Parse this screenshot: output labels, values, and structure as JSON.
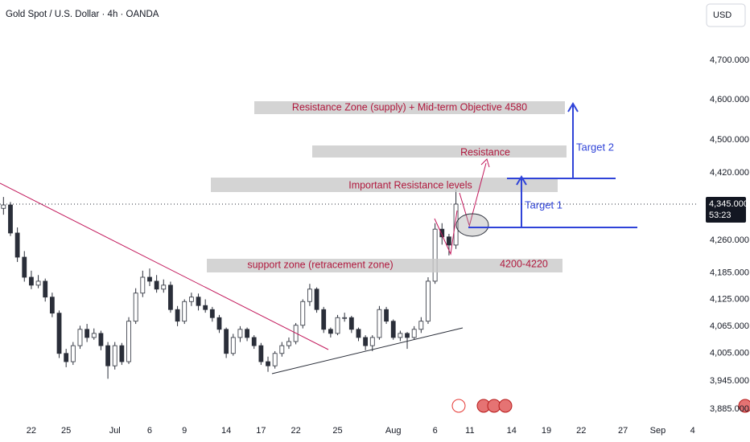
{
  "chart_data": {
    "type": "candlestick",
    "title": "Gold Spot / U.S. Dollar · 4h · OANDA",
    "currency": "USD",
    "log_scale": true,
    "grid": false,
    "up_color": "#ffffff",
    "down_color": "#2a2e39",
    "wick_color": "#2a2e39",
    "ylim": [
      3816,
      4857
    ],
    "yticks": [
      {
        "value": 4700,
        "label": "4,700.000"
      },
      {
        "value": 4600,
        "label": "4,600.000"
      },
      {
        "value": 4500,
        "label": "4,500.000"
      },
      {
        "value": 4420,
        "label": "4,420.000"
      },
      {
        "value": 4260,
        "label": "4,260.000"
      },
      {
        "value": 4185,
        "label": "4,185.000"
      },
      {
        "value": 4125,
        "label": "4,125.000"
      },
      {
        "value": 4065,
        "label": "4,065.000"
      },
      {
        "value": 4005,
        "label": "4,005.000"
      },
      {
        "value": 3945,
        "label": "3,945.000"
      },
      {
        "value": 3885,
        "label": "3,885.000"
      }
    ],
    "last_price": {
      "value": 4345,
      "label": "4,345.000"
    },
    "countdown": "53:23",
    "categories": [
      null,
      null,
      null,
      null,
      "22",
      null,
      null,
      null,
      null,
      "25",
      null,
      null,
      null,
      null,
      null,
      null,
      "Jul",
      null,
      null,
      null,
      null,
      "6",
      null,
      null,
      null,
      null,
      "9",
      null,
      null,
      null,
      null,
      null,
      "14",
      null,
      null,
      null,
      null,
      "17",
      null,
      null,
      null,
      null,
      "22",
      null,
      null,
      null,
      null,
      null,
      "25",
      null,
      null,
      null,
      null,
      null,
      null,
      null,
      "Aug",
      null,
      null,
      null,
      null,
      null,
      "6",
      null,
      null,
      null,
      null,
      "11",
      null,
      null,
      null,
      null,
      null,
      "14",
      null,
      null,
      null,
      null,
      "19",
      null,
      null,
      null,
      null,
      "22",
      null,
      null,
      null,
      null,
      null,
      "27",
      null,
      null,
      null,
      null,
      "Sep",
      null,
      null,
      null,
      null,
      "4"
    ],
    "open": [
      4335,
      4343,
      4277,
      4221,
      4175,
      4157,
      4166,
      4130,
      4094,
      4005,
      3987,
      4022,
      4058,
      4040,
      4049,
      4022,
      3978,
      4022,
      3987,
      4076,
      4139,
      4175,
      4166,
      4148,
      4157,
      4102,
      4076,
      4120,
      4130,
      4111,
      4102,
      4084,
      4058,
      4005,
      4040,
      4058,
      4040,
      4022,
      3987,
      3978,
      4005,
      4022,
      4031,
      4067,
      4120,
      4148,
      4102,
      4058,
      4049,
      4084,
      4084,
      4058,
      4040,
      4022,
      4040,
      4102,
      4076,
      4040,
      4049,
      4040,
      4058,
      4076,
      4166,
      4286,
      4268,
      4249,
      null,
      null,
      null,
      null,
      null,
      null,
      null,
      null,
      null,
      null,
      null,
      null,
      null,
      null,
      null,
      null,
      null,
      null,
      null,
      null,
      null,
      null,
      null,
      null,
      null,
      null,
      null,
      null,
      null,
      null,
      null,
      null,
      null,
      null
    ],
    "high": [
      4362,
      4350,
      4290,
      4235,
      4190,
      4180,
      4172,
      4140,
      4100,
      4015,
      4030,
      4066,
      4070,
      4060,
      4055,
      4030,
      4030,
      4028,
      4085,
      4150,
      4190,
      4195,
      4180,
      4170,
      4165,
      4110,
      4125,
      4140,
      4138,
      4125,
      4108,
      4090,
      4062,
      4048,
      4065,
      4062,
      4045,
      4028,
      3998,
      4010,
      4030,
      4040,
      4072,
      4125,
      4160,
      4152,
      4108,
      4062,
      4090,
      4095,
      4088,
      4062,
      4045,
      4045,
      4110,
      4108,
      4080,
      4055,
      4052,
      4065,
      4085,
      4175,
      4300,
      4300,
      4275,
      4380,
      null,
      null,
      null,
      null,
      null,
      null,
      null,
      null,
      null,
      null,
      null,
      null,
      null,
      null,
      null,
      null,
      null,
      null,
      null,
      null,
      null,
      null,
      null,
      null,
      null,
      null,
      null,
      null,
      null,
      null,
      null,
      null,
      null,
      null
    ],
    "low": [
      4320,
      4270,
      4210,
      4165,
      4148,
      4150,
      4120,
      4085,
      3995,
      3975,
      3980,
      4015,
      4030,
      4035,
      4012,
      3950,
      3970,
      3980,
      3982,
      4070,
      4130,
      4155,
      4140,
      4140,
      4095,
      4065,
      4070,
      4110,
      4100,
      4095,
      4075,
      4050,
      3995,
      4000,
      4030,
      4032,
      4015,
      3980,
      3965,
      3972,
      3998,
      4015,
      4025,
      4060,
      4110,
      4095,
      4050,
      4040,
      4045,
      4075,
      4050,
      4032,
      4012,
      4010,
      4035,
      4070,
      4035,
      4032,
      4015,
      4035,
      4050,
      4070,
      4160,
      4250,
      4225,
      4240,
      null,
      null,
      null,
      null,
      null,
      null,
      null,
      null,
      null,
      null,
      null,
      null,
      null,
      null,
      null,
      null,
      null,
      null,
      null,
      null,
      null,
      null,
      null,
      null,
      null,
      null,
      null,
      null,
      null,
      null,
      null,
      null,
      null,
      null
    ],
    "close": [
      4343,
      4277,
      4221,
      4175,
      4157,
      4166,
      4130,
      4094,
      4005,
      3987,
      4022,
      4058,
      4040,
      4049,
      4022,
      3978,
      4022,
      3987,
      4076,
      4139,
      4175,
      4166,
      4148,
      4157,
      4102,
      4076,
      4120,
      4130,
      4111,
      4102,
      4084,
      4058,
      4005,
      4040,
      4058,
      4040,
      4022,
      3987,
      3978,
      4005,
      4022,
      4031,
      4067,
      4120,
      4148,
      4102,
      4058,
      4049,
      4084,
      4084,
      4058,
      4040,
      4022,
      4040,
      4102,
      4076,
      4040,
      4049,
      4040,
      4058,
      4076,
      4166,
      4286,
      4268,
      4249,
      4345,
      null,
      null,
      null,
      null,
      null,
      null,
      null,
      null,
      null,
      null,
      null,
      null,
      null,
      null,
      null,
      null,
      null,
      null,
      null,
      null,
      null,
      null,
      null,
      null,
      null,
      null,
      null,
      null,
      null,
      null,
      null,
      null,
      null,
      null
    ],
    "annotations": {
      "resistance_zone": "Resistance Zone (supply) + Mid-term Objective 4580",
      "resistance": "Resistance",
      "important_resistance": "Important Resistance levels",
      "target_2": "Target 2",
      "target_1": "Target 1",
      "support_zone": "support zone (retracement zone)",
      "support_range": "4200-4220"
    }
  }
}
